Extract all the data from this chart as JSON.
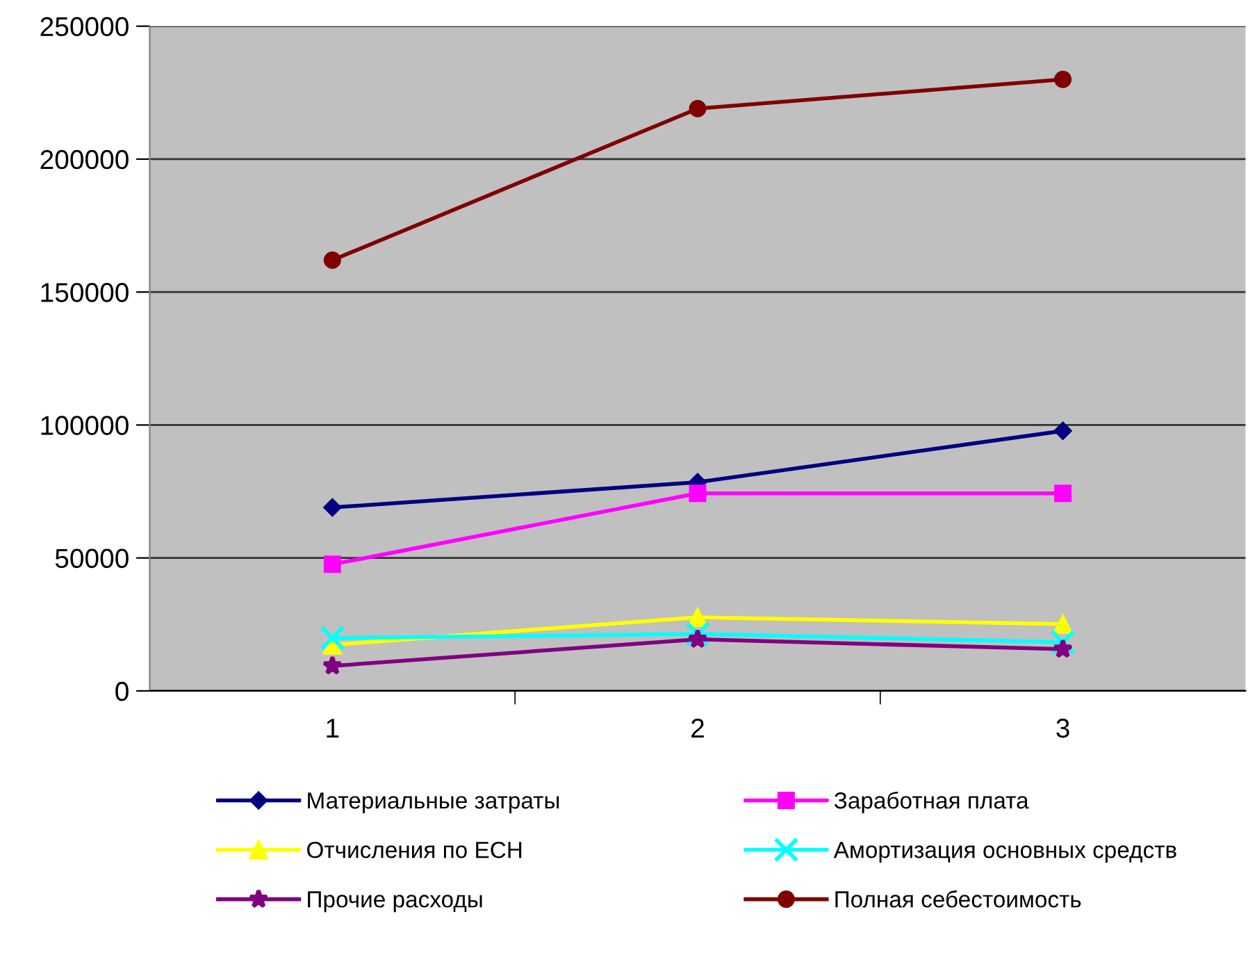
{
  "chart_data": {
    "type": "line",
    "categories": [
      "1",
      "2",
      "3"
    ],
    "ylim": [
      0,
      250000
    ],
    "yticks": [
      0,
      50000,
      100000,
      150000,
      200000,
      250000
    ],
    "grid": "y",
    "legend": "bottom",
    "series": [
      {
        "name": "Материальные затраты",
        "color": "#000080",
        "marker": "diamond",
        "values": [
          69000,
          78500,
          97800
        ]
      },
      {
        "name": "Заработная плата",
        "color": "#ff00ff",
        "marker": "square",
        "values": [
          47600,
          74300,
          74300
        ]
      },
      {
        "name": "Отчисления по ЕСН",
        "color": "#ffff00",
        "marker": "triangle",
        "values": [
          17300,
          27700,
          25100
        ]
      },
      {
        "name": "Амортизация основных средств",
        "color": "#00ffff",
        "marker": "cross",
        "values": [
          19900,
          21400,
          18300
        ]
      },
      {
        "name": "Прочие расходы",
        "color": "#800080",
        "marker": "star",
        "values": [
          9400,
          19400,
          15700
        ]
      },
      {
        "name": "Полная себестоимость",
        "color": "#800000",
        "marker": "circle",
        "values": [
          162000,
          219000,
          230000
        ]
      }
    ]
  }
}
